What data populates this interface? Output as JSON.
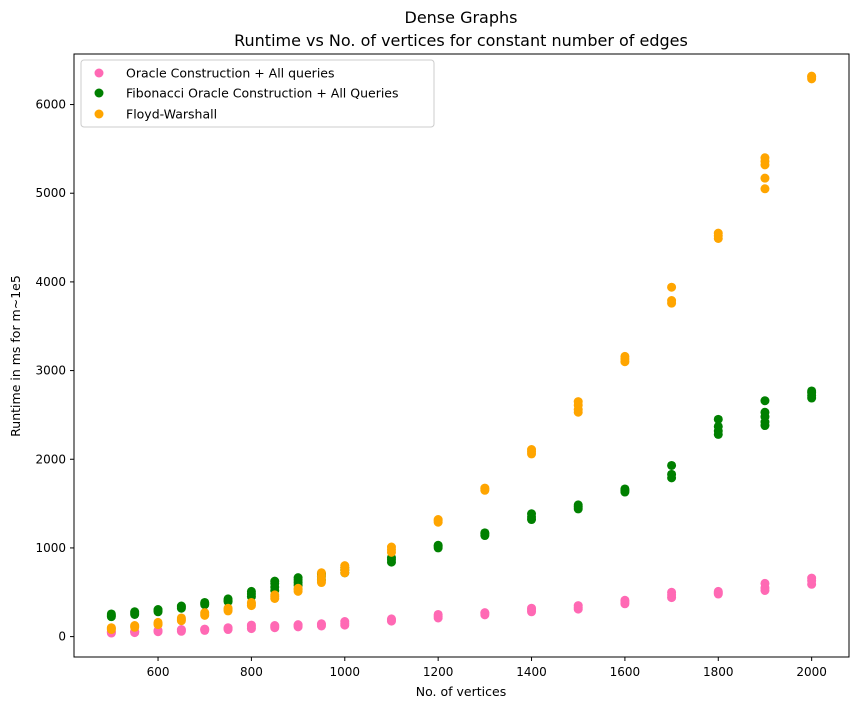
{
  "chart_data": {
    "type": "scatter",
    "title": "Dense Graphs",
    "subtitle": "Runtime vs No. of vertices for constant number of edges",
    "xlabel": "No. of vertices",
    "ylabel": "Runtime in ms for m~1e5",
    "xlim": [
      420,
      2080
    ],
    "ylim": [
      -230,
      6570
    ],
    "xticks": [
      600,
      800,
      1000,
      1200,
      1400,
      1600,
      1800,
      2000
    ],
    "yticks": [
      0,
      1000,
      2000,
      3000,
      4000,
      5000,
      6000
    ],
    "grid": false,
    "legend_position": "upper-left",
    "series": [
      {
        "name": "Oracle Construction + All queries",
        "color": "#ff69b4",
        "points": [
          [
            500,
            40
          ],
          [
            500,
            50
          ],
          [
            500,
            60
          ],
          [
            550,
            45
          ],
          [
            550,
            55
          ],
          [
            550,
            60
          ],
          [
            600,
            55
          ],
          [
            600,
            65
          ],
          [
            600,
            70
          ],
          [
            650,
            60
          ],
          [
            650,
            75
          ],
          [
            650,
            80
          ],
          [
            700,
            70
          ],
          [
            700,
            80
          ],
          [
            700,
            85
          ],
          [
            750,
            80
          ],
          [
            750,
            90
          ],
          [
            750,
            100
          ],
          [
            800,
            90
          ],
          [
            800,
            110
          ],
          [
            800,
            130
          ],
          [
            850,
            100
          ],
          [
            850,
            115
          ],
          [
            850,
            125
          ],
          [
            900,
            110
          ],
          [
            900,
            125
          ],
          [
            900,
            135
          ],
          [
            950,
            120
          ],
          [
            950,
            135
          ],
          [
            950,
            145
          ],
          [
            1000,
            130
          ],
          [
            1000,
            150
          ],
          [
            1000,
            170
          ],
          [
            1100,
            175
          ],
          [
            1100,
            190
          ],
          [
            1100,
            200
          ],
          [
            1200,
            210
          ],
          [
            1200,
            230
          ],
          [
            1200,
            250
          ],
          [
            1300,
            245
          ],
          [
            1300,
            260
          ],
          [
            1300,
            270
          ],
          [
            1400,
            280
          ],
          [
            1400,
            300
          ],
          [
            1400,
            320
          ],
          [
            1500,
            310
          ],
          [
            1500,
            330
          ],
          [
            1500,
            350
          ],
          [
            1600,
            370
          ],
          [
            1600,
            390
          ],
          [
            1600,
            410
          ],
          [
            1700,
            440
          ],
          [
            1700,
            470
          ],
          [
            1700,
            500
          ],
          [
            1800,
            480
          ],
          [
            1800,
            495
          ],
          [
            1800,
            510
          ],
          [
            1900,
            520
          ],
          [
            1900,
            550
          ],
          [
            1900,
            600
          ],
          [
            2000,
            590
          ],
          [
            2000,
            630
          ],
          [
            2000,
            660
          ]
        ]
      },
      {
        "name": "Fibonacci Oracle Construction + All Queries",
        "color": "#008000",
        "points": [
          [
            500,
            225
          ],
          [
            500,
            240
          ],
          [
            500,
            255
          ],
          [
            550,
            250
          ],
          [
            550,
            265
          ],
          [
            550,
            280
          ],
          [
            600,
            280
          ],
          [
            600,
            295
          ],
          [
            600,
            305
          ],
          [
            650,
            320
          ],
          [
            650,
            335
          ],
          [
            650,
            345
          ],
          [
            700,
            360
          ],
          [
            700,
            375
          ],
          [
            700,
            385
          ],
          [
            750,
            395
          ],
          [
            750,
            410
          ],
          [
            750,
            425
          ],
          [
            800,
            450
          ],
          [
            800,
            480
          ],
          [
            800,
            510
          ],
          [
            850,
            520
          ],
          [
            850,
            560
          ],
          [
            850,
            600
          ],
          [
            850,
            625
          ],
          [
            900,
            580
          ],
          [
            900,
            610
          ],
          [
            900,
            640
          ],
          [
            900,
            665
          ],
          [
            950,
            640
          ],
          [
            950,
            680
          ],
          [
            950,
            710
          ],
          [
            1000,
            720
          ],
          [
            1000,
            750
          ],
          [
            1000,
            780
          ],
          [
            1100,
            840
          ],
          [
            1100,
            870
          ],
          [
            1100,
            890
          ],
          [
            1200,
            1000
          ],
          [
            1200,
            1020
          ],
          [
            1200,
            1030
          ],
          [
            1300,
            1140
          ],
          [
            1300,
            1160
          ],
          [
            1300,
            1170
          ],
          [
            1400,
            1320
          ],
          [
            1400,
            1350
          ],
          [
            1400,
            1385
          ],
          [
            1500,
            1440
          ],
          [
            1500,
            1465
          ],
          [
            1500,
            1485
          ],
          [
            1600,
            1630
          ],
          [
            1600,
            1650
          ],
          [
            1600,
            1665
          ],
          [
            1700,
            1790
          ],
          [
            1700,
            1830
          ],
          [
            1700,
            1930
          ],
          [
            1800,
            2280
          ],
          [
            1800,
            2320
          ],
          [
            1800,
            2370
          ],
          [
            1800,
            2450
          ],
          [
            1900,
            2380
          ],
          [
            1900,
            2420
          ],
          [
            1900,
            2480
          ],
          [
            1900,
            2530
          ],
          [
            1900,
            2660
          ],
          [
            2000,
            2690
          ],
          [
            2000,
            2720
          ],
          [
            2000,
            2750
          ],
          [
            2000,
            2770
          ]
        ]
      },
      {
        "name": "Floyd-Warshall",
        "color": "#ffa500",
        "points": [
          [
            500,
            80
          ],
          [
            500,
            90
          ],
          [
            500,
            100
          ],
          [
            550,
            105
          ],
          [
            550,
            115
          ],
          [
            550,
            125
          ],
          [
            600,
            135
          ],
          [
            600,
            145
          ],
          [
            600,
            160
          ],
          [
            650,
            180
          ],
          [
            650,
            195
          ],
          [
            650,
            210
          ],
          [
            700,
            240
          ],
          [
            700,
            255
          ],
          [
            700,
            270
          ],
          [
            750,
            290
          ],
          [
            750,
            305
          ],
          [
            750,
            320
          ],
          [
            800,
            350
          ],
          [
            800,
            370
          ],
          [
            800,
            385
          ],
          [
            850,
            430
          ],
          [
            850,
            450
          ],
          [
            850,
            470
          ],
          [
            900,
            510
          ],
          [
            900,
            530
          ],
          [
            900,
            545
          ],
          [
            950,
            610
          ],
          [
            950,
            640
          ],
          [
            950,
            680
          ],
          [
            950,
            720
          ],
          [
            1000,
            720
          ],
          [
            1000,
            750
          ],
          [
            1000,
            780
          ],
          [
            1000,
            800
          ],
          [
            1100,
            950
          ],
          [
            1100,
            980
          ],
          [
            1100,
            1010
          ],
          [
            1200,
            1290
          ],
          [
            1200,
            1310
          ],
          [
            1200,
            1320
          ],
          [
            1300,
            1650
          ],
          [
            1300,
            1665
          ],
          [
            1300,
            1675
          ],
          [
            1400,
            2060
          ],
          [
            1400,
            2085
          ],
          [
            1400,
            2110
          ],
          [
            1500,
            2530
          ],
          [
            1500,
            2560
          ],
          [
            1500,
            2610
          ],
          [
            1500,
            2650
          ],
          [
            1600,
            3100
          ],
          [
            1600,
            3130
          ],
          [
            1600,
            3160
          ],
          [
            1700,
            3760
          ],
          [
            1700,
            3790
          ],
          [
            1700,
            3940
          ],
          [
            1800,
            4490
          ],
          [
            1800,
            4520
          ],
          [
            1800,
            4550
          ],
          [
            1900,
            5050
          ],
          [
            1900,
            5170
          ],
          [
            1900,
            5320
          ],
          [
            1900,
            5360
          ],
          [
            1900,
            5400
          ],
          [
            2000,
            6290
          ],
          [
            2000,
            6310
          ],
          [
            2000,
            6320
          ]
        ]
      }
    ]
  }
}
